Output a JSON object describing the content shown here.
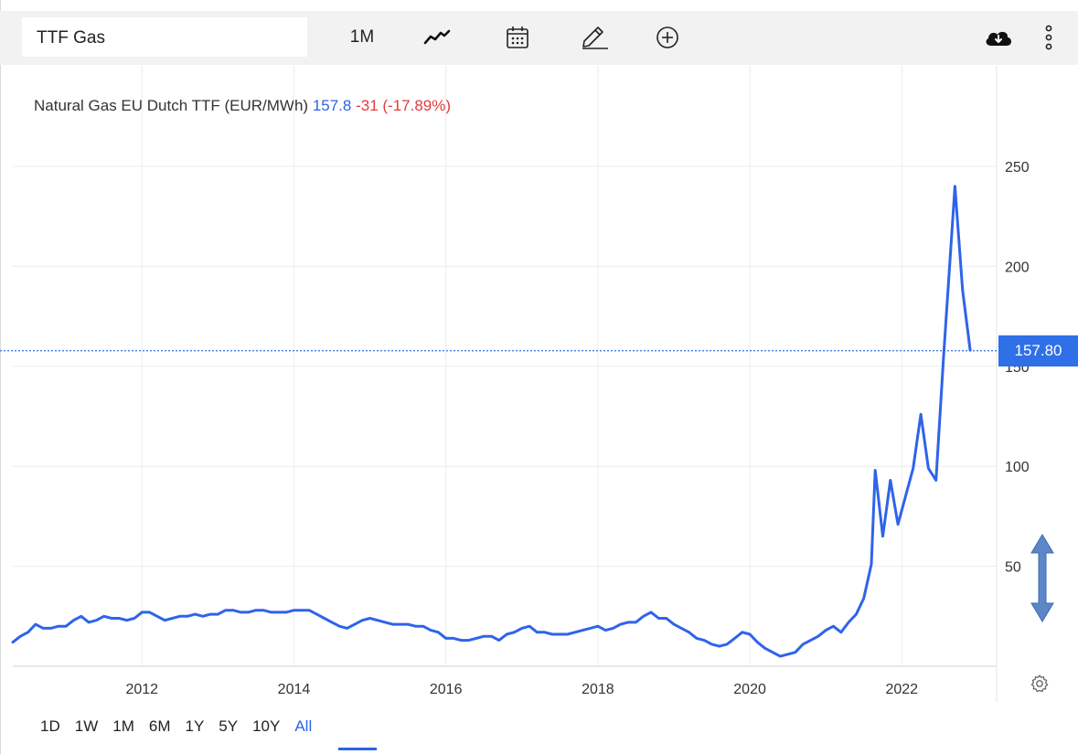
{
  "toolbar": {
    "symbol": "TTF Gas",
    "period": "1M",
    "icons": [
      "line-chart-icon",
      "calendar-icon",
      "pencil-icon",
      "plus-circle-icon",
      "cloud-download-icon",
      "more-vertical-icon"
    ]
  },
  "title": {
    "name": "Natural Gas EU Dutch TTF (EUR/MWh)",
    "price": "157.8",
    "change": "-31 (-17.89%)"
  },
  "current_price_label": "157.80",
  "ranges": [
    "1D",
    "1W",
    "1M",
    "6M",
    "1Y",
    "5Y",
    "10Y",
    "All"
  ],
  "active_range": "All",
  "colors": {
    "line": "#2b63e6",
    "change": "#e23b3b",
    "tag": "#2f6fe8"
  },
  "chart_data": {
    "type": "line",
    "title": "Natural Gas EU Dutch TTF (EUR/MWh)",
    "xlabel": "",
    "ylabel": "",
    "x_ticks": [
      2012,
      2014,
      2016,
      2018,
      2020,
      2022
    ],
    "y_ticks": [
      50,
      100,
      150,
      200,
      250
    ],
    "xlim": [
      2010.3,
      2023.2
    ],
    "ylim": [
      0,
      275
    ],
    "current_value": 157.8,
    "grid": true,
    "series": [
      {
        "values": [
          [
            2010.3,
            12
          ],
          [
            2010.4,
            15
          ],
          [
            2010.5,
            17
          ],
          [
            2010.6,
            21
          ],
          [
            2010.7,
            19
          ],
          [
            2010.8,
            19
          ],
          [
            2010.9,
            20
          ],
          [
            2011.0,
            20
          ],
          [
            2011.1,
            23
          ],
          [
            2011.2,
            25
          ],
          [
            2011.3,
            22
          ],
          [
            2011.4,
            23
          ],
          [
            2011.5,
            25
          ],
          [
            2011.6,
            24
          ],
          [
            2011.7,
            24
          ],
          [
            2011.8,
            23
          ],
          [
            2011.9,
            24
          ],
          [
            2012.0,
            27
          ],
          [
            2012.1,
            27
          ],
          [
            2012.2,
            25
          ],
          [
            2012.3,
            23
          ],
          [
            2012.4,
            24
          ],
          [
            2012.5,
            25
          ],
          [
            2012.6,
            25
          ],
          [
            2012.7,
            26
          ],
          [
            2012.8,
            25
          ],
          [
            2012.9,
            26
          ],
          [
            2013.0,
            26
          ],
          [
            2013.1,
            28
          ],
          [
            2013.2,
            28
          ],
          [
            2013.3,
            27
          ],
          [
            2013.4,
            27
          ],
          [
            2013.5,
            28
          ],
          [
            2013.6,
            28
          ],
          [
            2013.7,
            27
          ],
          [
            2013.8,
            27
          ],
          [
            2013.9,
            27
          ],
          [
            2014.0,
            28
          ],
          [
            2014.1,
            28
          ],
          [
            2014.2,
            28
          ],
          [
            2014.3,
            26
          ],
          [
            2014.4,
            24
          ],
          [
            2014.5,
            22
          ],
          [
            2014.6,
            20
          ],
          [
            2014.7,
            19
          ],
          [
            2014.8,
            21
          ],
          [
            2014.9,
            23
          ],
          [
            2015.0,
            24
          ],
          [
            2015.1,
            23
          ],
          [
            2015.2,
            22
          ],
          [
            2015.3,
            21
          ],
          [
            2015.4,
            21
          ],
          [
            2015.5,
            21
          ],
          [
            2015.6,
            20
          ],
          [
            2015.7,
            20
          ],
          [
            2015.8,
            18
          ],
          [
            2015.9,
            17
          ],
          [
            2016.0,
            14
          ],
          [
            2016.1,
            14
          ],
          [
            2016.2,
            13
          ],
          [
            2016.3,
            13
          ],
          [
            2016.4,
            14
          ],
          [
            2016.5,
            15
          ],
          [
            2016.6,
            15
          ],
          [
            2016.7,
            13
          ],
          [
            2016.8,
            16
          ],
          [
            2016.9,
            17
          ],
          [
            2017.0,
            19
          ],
          [
            2017.1,
            20
          ],
          [
            2017.2,
            17
          ],
          [
            2017.3,
            17
          ],
          [
            2017.4,
            16
          ],
          [
            2017.5,
            16
          ],
          [
            2017.6,
            16
          ],
          [
            2017.7,
            17
          ],
          [
            2017.8,
            18
          ],
          [
            2017.9,
            19
          ],
          [
            2018.0,
            20
          ],
          [
            2018.1,
            18
          ],
          [
            2018.2,
            19
          ],
          [
            2018.3,
            21
          ],
          [
            2018.4,
            22
          ],
          [
            2018.5,
            22
          ],
          [
            2018.6,
            25
          ],
          [
            2018.7,
            27
          ],
          [
            2018.8,
            24
          ],
          [
            2018.9,
            24
          ],
          [
            2019.0,
            21
          ],
          [
            2019.1,
            19
          ],
          [
            2019.2,
            17
          ],
          [
            2019.3,
            14
          ],
          [
            2019.4,
            13
          ],
          [
            2019.5,
            11
          ],
          [
            2019.6,
            10
          ],
          [
            2019.7,
            11
          ],
          [
            2019.8,
            14
          ],
          [
            2019.9,
            17
          ],
          [
            2020.0,
            16
          ],
          [
            2020.1,
            12
          ],
          [
            2020.2,
            9
          ],
          [
            2020.3,
            7
          ],
          [
            2020.4,
            5
          ],
          [
            2020.5,
            6
          ],
          [
            2020.6,
            7
          ],
          [
            2020.7,
            11
          ],
          [
            2020.8,
            13
          ],
          [
            2020.9,
            15
          ],
          [
            2021.0,
            18
          ],
          [
            2021.1,
            20
          ],
          [
            2021.2,
            17
          ],
          [
            2021.3,
            22
          ],
          [
            2021.4,
            26
          ],
          [
            2021.5,
            34
          ],
          [
            2021.6,
            51
          ],
          [
            2021.65,
            98
          ],
          [
            2021.75,
            65
          ],
          [
            2021.85,
            93
          ],
          [
            2021.95,
            71
          ],
          [
            2022.05,
            85
          ],
          [
            2022.15,
            99
          ],
          [
            2022.25,
            126
          ],
          [
            2022.35,
            99
          ],
          [
            2022.45,
            93
          ],
          [
            2022.55,
            155
          ],
          [
            2022.7,
            240
          ],
          [
            2022.8,
            188
          ],
          [
            2022.9,
            158
          ]
        ]
      }
    ]
  }
}
